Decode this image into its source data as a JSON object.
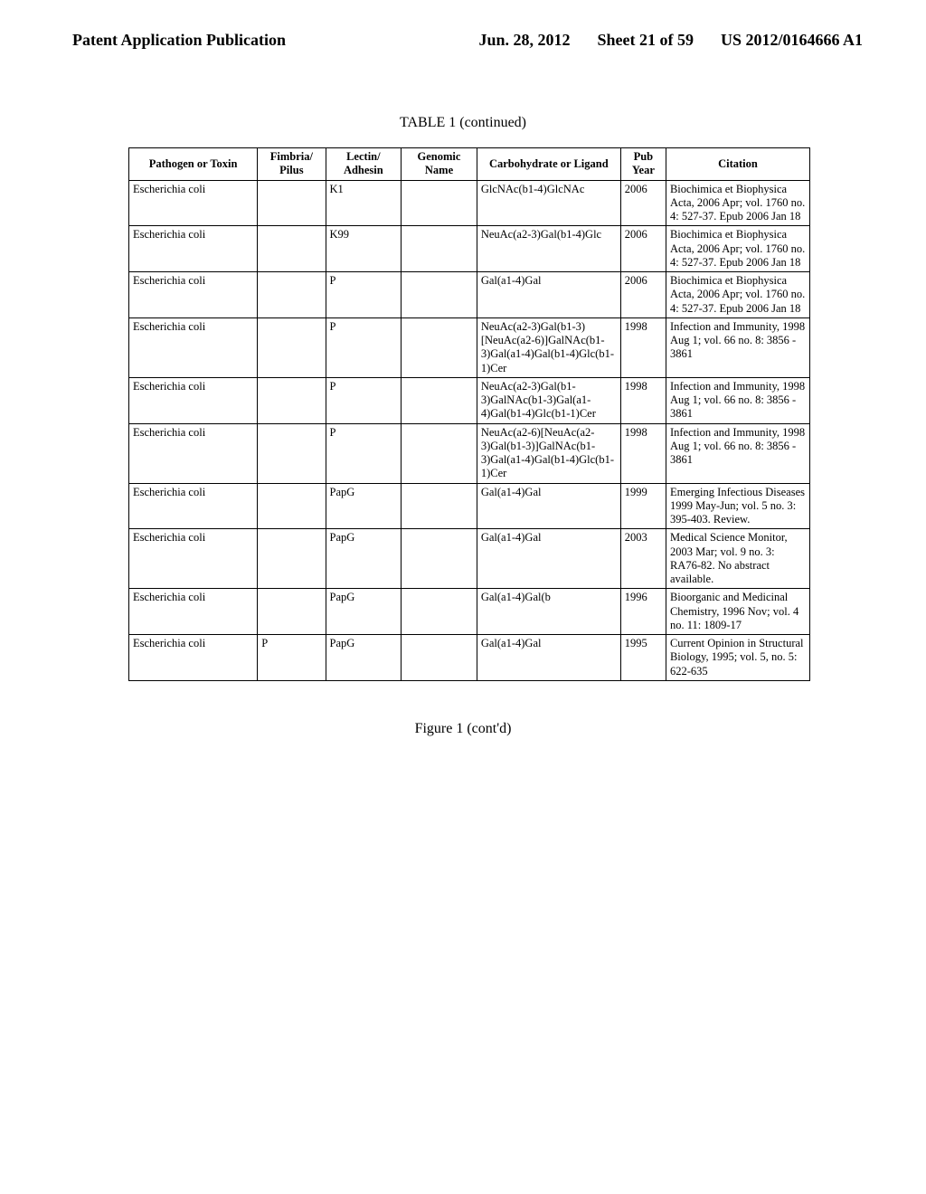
{
  "header": {
    "left": "Patent Application Publication",
    "date": "Jun. 28, 2012",
    "sheet": "Sheet 21 of 59",
    "pubno": "US 2012/0164666 A1"
  },
  "table_title": "TABLE 1 (continued)",
  "figure_caption": "Figure 1 (cont'd)",
  "columns": [
    "Pathogen or Toxin",
    "Fimbria/\nPilus",
    "Lectin/\nAdhesin",
    "Genomic\nName",
    "Carbohydrate or\nLigand",
    "Pub\nYear",
    "Citation"
  ],
  "rows": [
    {
      "pathogen": "Escherichia coli",
      "fimbria": "",
      "lectin": "K1",
      "genomic": "",
      "carb": "GlcNAc(b1-4)GlcNAc",
      "year": "2006",
      "cit": "Biochimica et Biophysica Acta, 2006 Apr; vol. 1760 no. 4: 527-37. Epub 2006 Jan 18"
    },
    {
      "pathogen": "Escherichia coli",
      "fimbria": "",
      "lectin": "K99",
      "genomic": "",
      "carb": "NeuAc(a2-3)Gal(b1-4)Glc",
      "year": "2006",
      "cit": "Biochimica et Biophysica Acta, 2006 Apr; vol. 1760 no. 4: 527-37. Epub 2006 Jan 18"
    },
    {
      "pathogen": "Escherichia coli",
      "fimbria": "",
      "lectin": "P",
      "genomic": "",
      "carb": "Gal(a1-4)Gal",
      "year": "2006",
      "cit": "Biochimica et Biophysica Acta, 2006 Apr; vol. 1760 no. 4: 527-37. Epub 2006 Jan 18"
    },
    {
      "pathogen": "Escherichia coli",
      "fimbria": "",
      "lectin": "P",
      "genomic": "",
      "carb": "NeuAc(a2-3)Gal(b1-3)[NeuAc(a2-6)]GalNAc(b1-3)Gal(a1-4)Gal(b1-4)Glc(b1-1)Cer",
      "year": "1998",
      "cit": "Infection and Immunity, 1998 Aug 1; vol. 66 no. 8: 3856 - 3861"
    },
    {
      "pathogen": "Escherichia coli",
      "fimbria": "",
      "lectin": "P",
      "genomic": "",
      "carb": "NeuAc(a2-3)Gal(b1-3)GalNAc(b1-3)Gal(a1-4)Gal(b1-4)Glc(b1-1)Cer",
      "year": "1998",
      "cit": "Infection and Immunity, 1998 Aug 1; vol. 66 no. 8: 3856 - 3861"
    },
    {
      "pathogen": "Escherichia coli",
      "fimbria": "",
      "lectin": "P",
      "genomic": "",
      "carb": "NeuAc(a2-6)[NeuAc(a2-3)Gal(b1-3)]GalNAc(b1-3)Gal(a1-4)Gal(b1-4)Glc(b1-1)Cer",
      "year": "1998",
      "cit": "Infection and Immunity, 1998 Aug 1; vol. 66 no. 8: 3856 - 3861"
    },
    {
      "pathogen": "Escherichia coli",
      "fimbria": "",
      "lectin": "PapG",
      "genomic": "",
      "carb": "Gal(a1-4)Gal",
      "year": "1999",
      "cit": "Emerging Infectious Diseases 1999 May-Jun; vol. 5 no. 3: 395-403. Review."
    },
    {
      "pathogen": "Escherichia coli",
      "fimbria": "",
      "lectin": "PapG",
      "genomic": "",
      "carb": "Gal(a1-4)Gal",
      "year": "2003",
      "cit": "Medical Science Monitor, 2003 Mar; vol. 9 no. 3: RA76-82. No abstract available."
    },
    {
      "pathogen": "Escherichia coli",
      "fimbria": "",
      "lectin": "PapG",
      "genomic": "",
      "carb": "Gal(a1-4)Gal(b",
      "year": "1996",
      "cit": "Bioorganic and Medicinal Chemistry, 1996 Nov; vol. 4 no. 11: 1809-17"
    },
    {
      "pathogen": "Escherichia coli",
      "fimbria": "P",
      "lectin": "PapG",
      "genomic": "",
      "carb": "Gal(a1-4)Gal",
      "year": "1995",
      "cit": "Current Opinion in Structural Biology, 1995; vol. 5, no. 5: 622-635"
    }
  ]
}
